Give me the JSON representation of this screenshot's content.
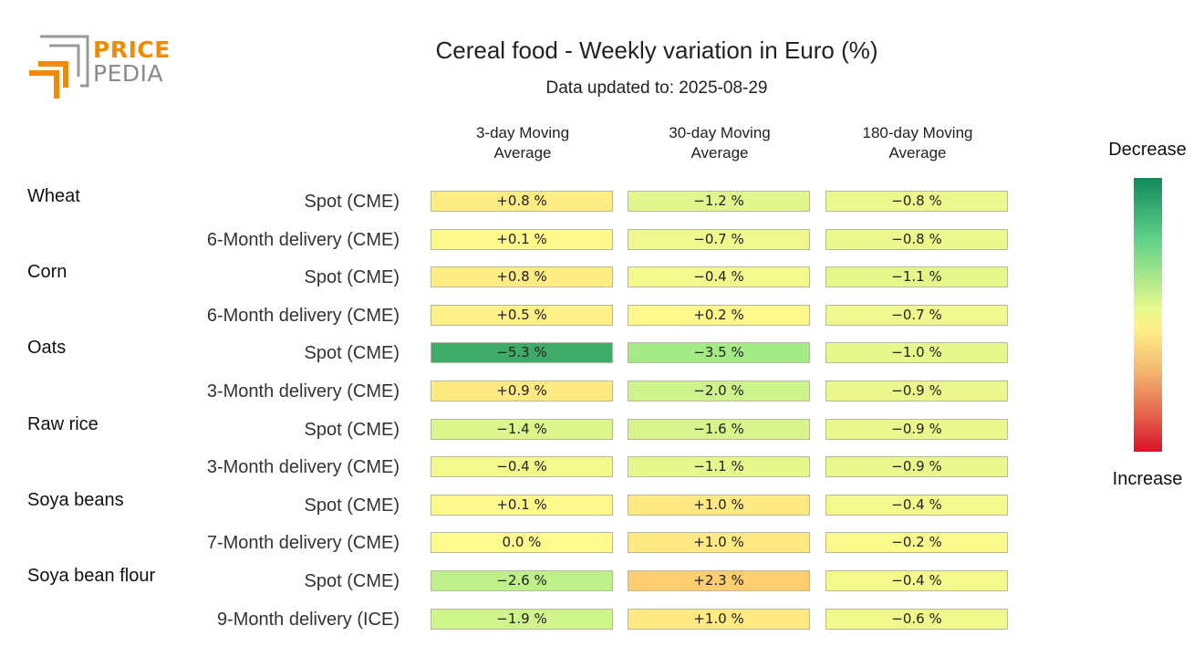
{
  "logo": {
    "line1": "PRICE",
    "line2": "PEDIA"
  },
  "chart_data": {
    "type": "table",
    "title": "Cereal food - Weekly variation in Euro (%)",
    "subtitle": "Data updated to: 2025-08-29",
    "columns": [
      "3-day Moving\nAverage",
      "30-day Moving\nAverage",
      "180-day Moving\nAverage"
    ],
    "legend": {
      "top": "Decrease",
      "bottom": "Increase"
    },
    "groups": [
      {
        "name": "Wheat",
        "rows": [
          {
            "label": "Spot (CME)",
            "values": [
              0.8,
              -1.2,
              -0.8
            ],
            "text": [
              "+0.8 %",
              "−1.2 %",
              "−0.8 %"
            ]
          },
          {
            "label": "6-Month delivery (CME)",
            "values": [
              0.1,
              -0.7,
              -0.8
            ],
            "text": [
              "+0.1 %",
              "−0.7 %",
              "−0.8 %"
            ]
          }
        ]
      },
      {
        "name": "Corn",
        "rows": [
          {
            "label": "Spot (CME)",
            "values": [
              0.8,
              -0.4,
              -1.1
            ],
            "text": [
              "+0.8 %",
              "−0.4 %",
              "−1.1 %"
            ]
          },
          {
            "label": "6-Month delivery (CME)",
            "values": [
              0.5,
              0.2,
              -0.7
            ],
            "text": [
              "+0.5 %",
              "+0.2 %",
              "−0.7 %"
            ]
          }
        ]
      },
      {
        "name": "Oats",
        "rows": [
          {
            "label": "Spot (CME)",
            "values": [
              -5.3,
              -3.5,
              -1.0
            ],
            "text": [
              "−5.3 %",
              "−3.5 %",
              "−1.0 %"
            ]
          },
          {
            "label": "3-Month delivery (CME)",
            "values": [
              0.9,
              -2.0,
              -0.9
            ],
            "text": [
              "+0.9 %",
              "−2.0 %",
              "−0.9 %"
            ]
          }
        ]
      },
      {
        "name": "Raw rice",
        "rows": [
          {
            "label": "Spot (CME)",
            "values": [
              -1.4,
              -1.6,
              -0.9
            ],
            "text": [
              "−1.4 %",
              "−1.6 %",
              "−0.9 %"
            ]
          },
          {
            "label": "3-Month delivery (CME)",
            "values": [
              -0.4,
              -1.1,
              -0.9
            ],
            "text": [
              "−0.4 %",
              "−1.1 %",
              "−0.9 %"
            ]
          }
        ]
      },
      {
        "name": "Soya beans",
        "rows": [
          {
            "label": "Spot (CME)",
            "values": [
              0.1,
              1.0,
              -0.4
            ],
            "text": [
              "+0.1 %",
              "+1.0 %",
              "−0.4 %"
            ]
          },
          {
            "label": "7-Month delivery (CME)",
            "values": [
              0.0,
              1.0,
              -0.2
            ],
            "text": [
              "0.0 %",
              "+1.0 %",
              "−0.2 %"
            ]
          }
        ]
      },
      {
        "name": "Soya bean flour",
        "rows": [
          {
            "label": "Spot (CME)",
            "values": [
              -2.6,
              2.3,
              -0.4
            ],
            "text": [
              "−2.6 %",
              "+2.3 %",
              "−0.4 %"
            ]
          },
          {
            "label": "9-Month delivery (ICE)",
            "values": [
              -1.9,
              1.0,
              -0.6
            ],
            "text": [
              "−1.9 %",
              "+1.0 %",
              "−0.6 %"
            ]
          }
        ]
      }
    ]
  }
}
